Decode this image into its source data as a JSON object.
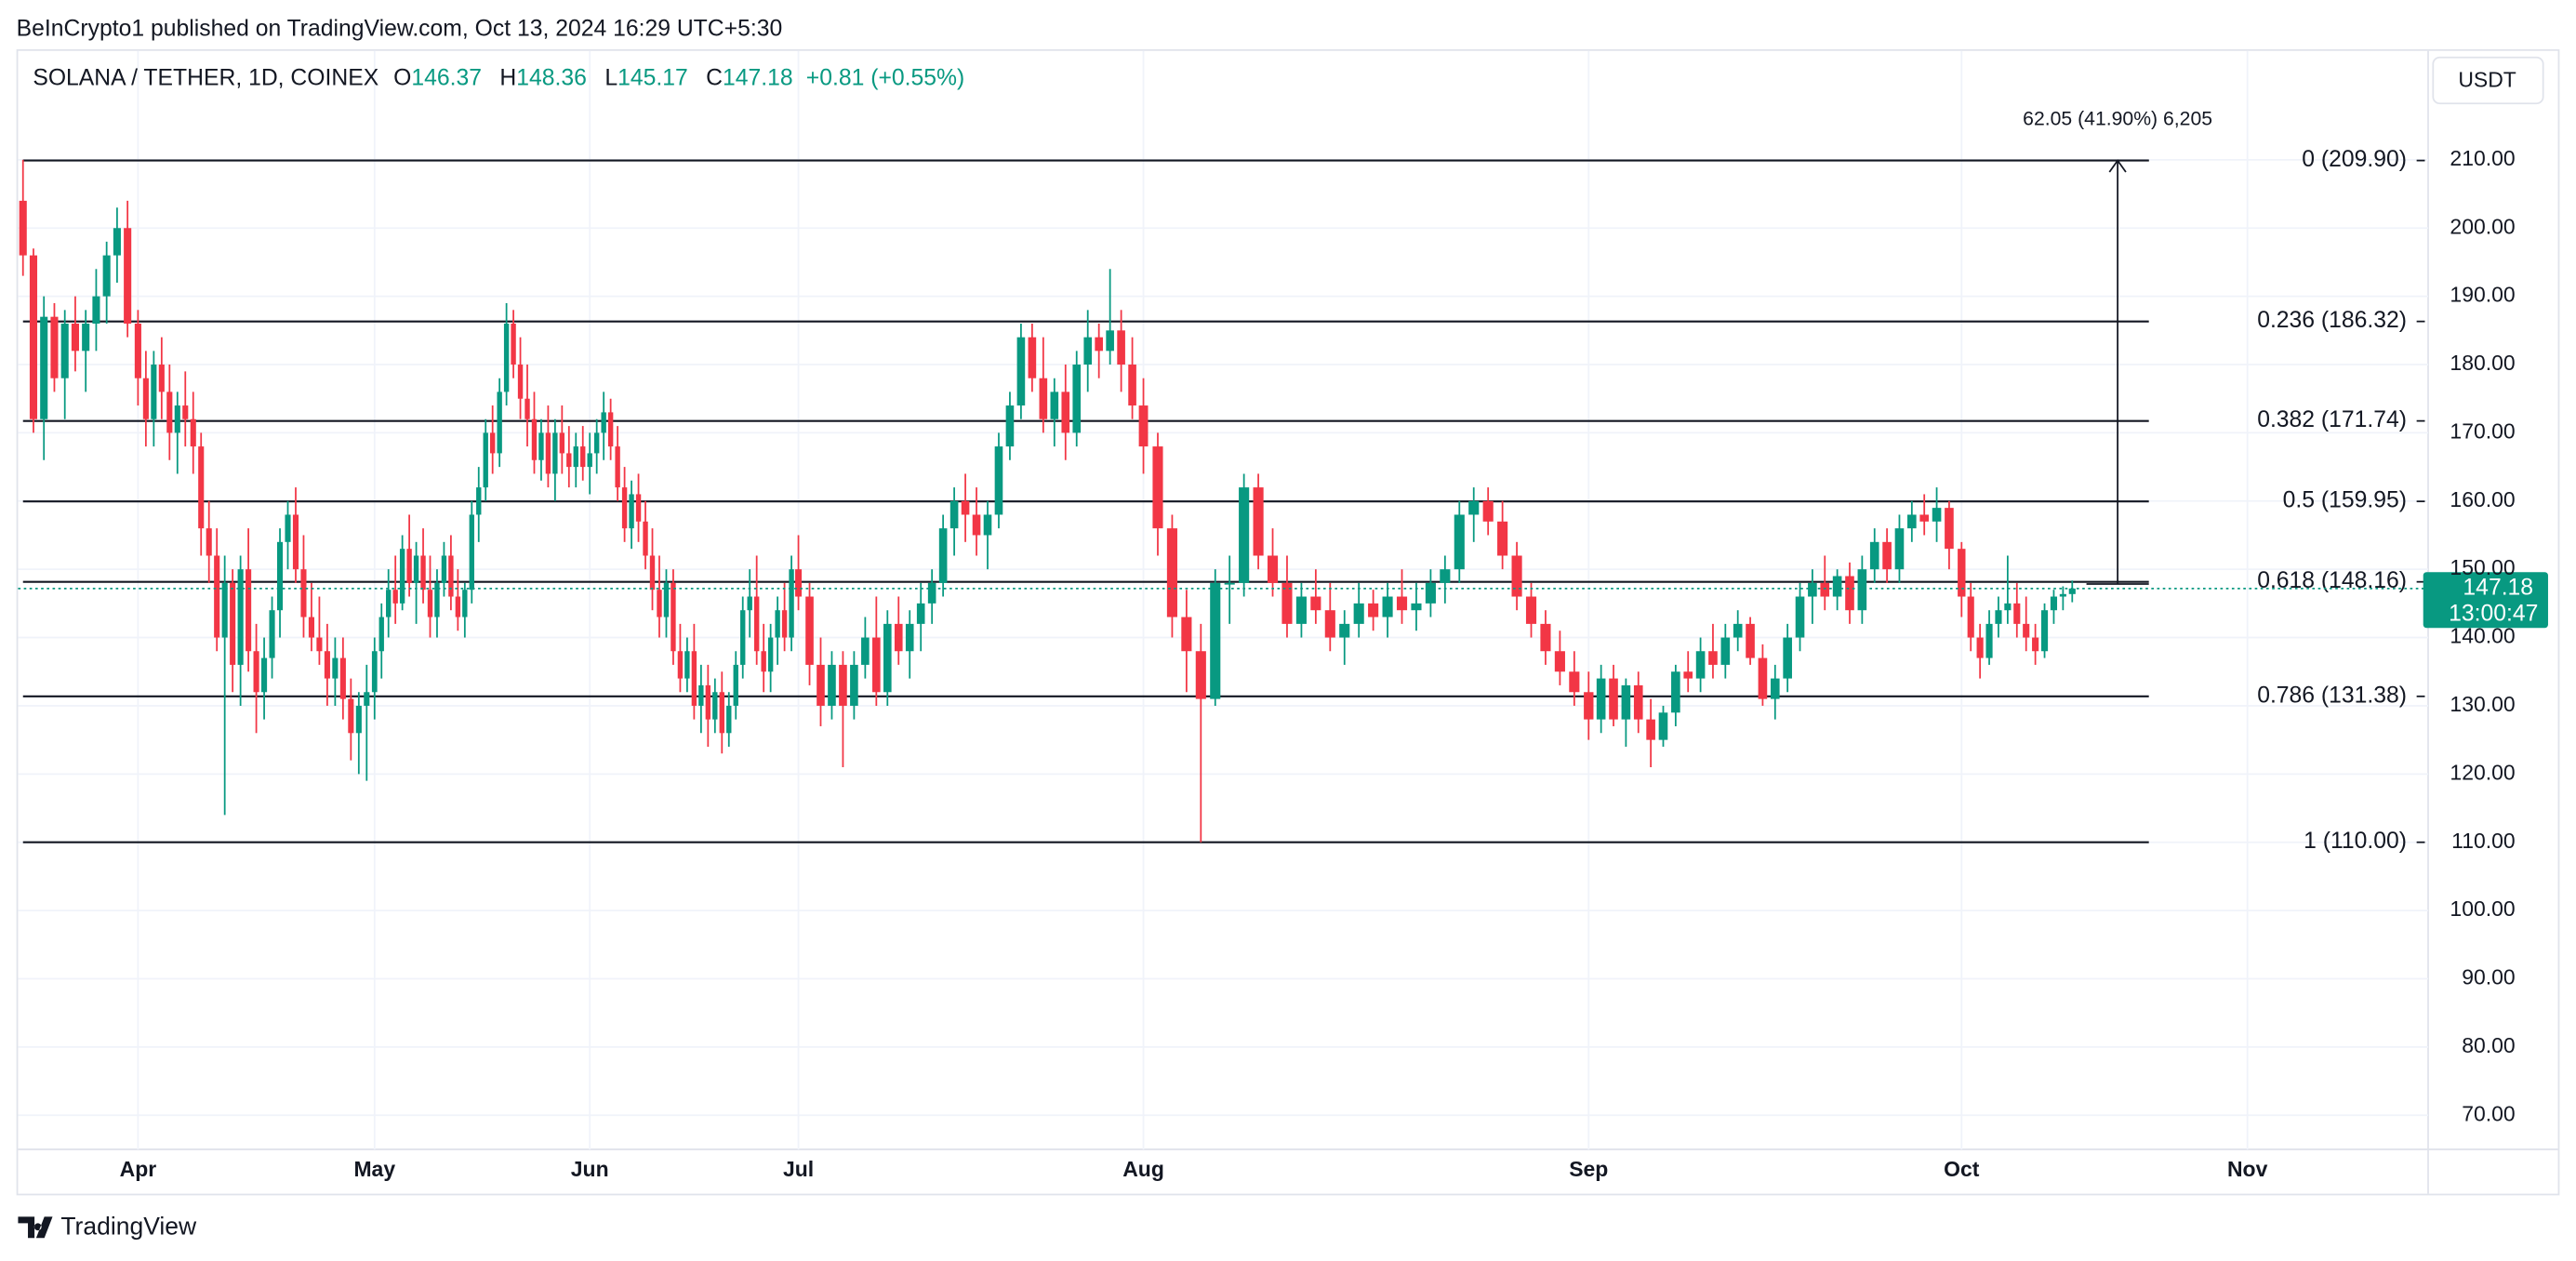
{
  "header": {
    "publisher": "BeInCrypto1 published on TradingView.com, Oct 13, 2024 16:29 UTC+5:30"
  },
  "footer": {
    "brand": "TradingView"
  },
  "chart_data": {
    "type": "candlestick",
    "title": "SOLANA / TETHER, 1D, COINEX",
    "legend": {
      "open_label": "O",
      "open": 146.37,
      "high_label": "H",
      "high": 148.36,
      "low_label": "L",
      "low": 145.17,
      "close_label": "C",
      "close": 147.18,
      "change": "+0.81 (+0.55%)"
    },
    "currency": "USDT",
    "countdown": "13:00:47",
    "colors": {
      "up": "#089981",
      "down": "#f23645"
    },
    "ylim": [
      65,
      225
    ],
    "yticks": [
      {
        "value": 70,
        "label": "70.00"
      },
      {
        "value": 80,
        "label": "80.00"
      },
      {
        "value": 90,
        "label": "90.00"
      },
      {
        "value": 100,
        "label": "100.00"
      },
      {
        "value": 110,
        "label": "110.00"
      },
      {
        "value": 120,
        "label": "120.00"
      },
      {
        "value": 130,
        "label": "130.00"
      },
      {
        "value": 140,
        "label": "140.00"
      },
      {
        "value": 150,
        "label": "150.00"
      },
      {
        "value": 160,
        "label": "160.00"
      },
      {
        "value": 170,
        "label": "170.00"
      },
      {
        "value": 180,
        "label": "180.00"
      },
      {
        "value": 190,
        "label": "190.00"
      },
      {
        "value": 200,
        "label": "200.00"
      },
      {
        "value": 210,
        "label": "210.00"
      }
    ],
    "grid": true,
    "fib_levels": [
      {
        "label": "0 (209.90)",
        "ratio": 0,
        "price": 209.9
      },
      {
        "label": "0.236 (186.32)",
        "ratio": 0.236,
        "price": 186.32
      },
      {
        "label": "0.382 (171.74)",
        "ratio": 0.382,
        "price": 171.74
      },
      {
        "label": "0.5 (159.95)",
        "ratio": 0.5,
        "price": 159.95
      },
      {
        "label": "0.618 (148.16)",
        "ratio": 0.618,
        "price": 148.16
      },
      {
        "label": "0.786 (131.38)",
        "ratio": 0.786,
        "price": 131.38
      },
      {
        "label": "1 (110.00)",
        "ratio": 1,
        "price": 110
      }
    ],
    "measure": {
      "label": "62.05 (41.90%) 6,205",
      "start": 147.85,
      "end": 209.9
    },
    "categories": [
      null,
      null,
      null,
      null,
      null,
      null,
      null,
      null,
      null,
      null,
      null,
      "Apr",
      null,
      null,
      null,
      null,
      null,
      null,
      null,
      null,
      null,
      null,
      null,
      null,
      null,
      null,
      null,
      null,
      null,
      null,
      null,
      null,
      null,
      null,
      null,
      null,
      null,
      null,
      null,
      null,
      null,
      "May",
      null,
      null,
      null,
      null,
      null,
      null,
      null,
      null,
      null,
      null,
      null,
      null,
      null,
      null,
      null,
      null,
      null,
      null,
      null,
      null,
      null,
      null,
      null,
      null,
      null,
      null,
      null,
      null,
      null,
      null,
      "Jun",
      null,
      null,
      null,
      null,
      null,
      null,
      null,
      null,
      null,
      null,
      null,
      null,
      null,
      null,
      null,
      null,
      null,
      null,
      null,
      null,
      null,
      null,
      null,
      null,
      null,
      null,
      null,
      null,
      null,
      "Jul",
      null,
      null,
      null,
      null,
      null,
      null,
      null,
      null,
      null,
      null,
      null,
      null,
      null,
      null,
      null,
      null,
      null,
      null,
      null,
      null,
      null,
      null,
      null,
      null,
      null,
      null,
      null,
      null,
      null,
      null,
      "Aug",
      null,
      null,
      null,
      null,
      null,
      null,
      null,
      null,
      null,
      null,
      null,
      null,
      null,
      null,
      null,
      null,
      null,
      null,
      null,
      null,
      null,
      null,
      null,
      null,
      null,
      null,
      null,
      null,
      null,
      null,
      "Sep",
      null,
      null,
      null,
      null,
      null,
      null,
      null,
      null,
      null,
      null,
      null,
      null,
      null,
      null,
      null,
      null,
      null,
      null,
      null,
      null,
      null,
      null,
      null,
      null,
      null,
      null,
      null,
      null,
      null,
      "Oct",
      null,
      null,
      null,
      null,
      null,
      null,
      null,
      null,
      null,
      null,
      null,
      null,
      null,
      null,
      null,
      null,
      null,
      null,
      null,
      null,
      null,
      null,
      null,
      null,
      null,
      null,
      null,
      null,
      null,
      null,
      "Nov"
    ],
    "ohlc": [
      [
        204,
        210,
        193,
        196
      ],
      [
        196,
        197,
        170,
        172
      ],
      [
        172,
        190,
        166,
        187
      ],
      [
        187,
        189,
        176,
        178
      ],
      [
        178,
        188,
        172,
        186
      ],
      [
        186,
        190,
        179,
        182
      ],
      [
        182,
        188,
        176,
        186
      ],
      [
        186,
        194,
        182,
        190
      ],
      [
        190,
        198,
        186,
        196
      ],
      [
        196,
        203,
        192,
        200
      ],
      [
        200,
        204,
        184,
        186
      ],
      [
        186,
        188,
        174,
        178
      ],
      [
        178,
        182,
        168,
        172
      ],
      [
        172,
        182,
        168,
        180
      ],
      [
        180,
        184,
        172,
        176
      ],
      [
        176,
        180,
        166,
        170
      ],
      [
        170,
        176,
        164,
        174
      ],
      [
        174,
        179,
        168,
        172
      ],
      [
        172,
        176,
        164,
        168
      ],
      [
        168,
        170,
        152,
        156
      ],
      [
        156,
        160,
        148,
        152
      ],
      [
        152,
        156,
        138,
        140
      ],
      [
        140,
        152,
        114,
        148
      ],
      [
        148,
        150,
        132,
        136
      ],
      [
        136,
        152,
        130,
        150
      ],
      [
        150,
        156,
        135,
        138
      ],
      [
        138,
        142,
        126,
        132
      ],
      [
        132,
        140,
        128,
        137
      ],
      [
        137,
        146,
        134,
        144
      ],
      [
        144,
        156,
        140,
        154
      ],
      [
        154,
        160,
        150,
        158
      ],
      [
        158,
        162,
        148,
        150
      ],
      [
        150,
        155,
        140,
        143
      ],
      [
        143,
        148,
        138,
        140
      ],
      [
        140,
        146,
        136,
        138
      ],
      [
        138,
        142,
        130,
        134
      ],
      [
        134,
        140,
        130,
        137
      ],
      [
        137,
        140,
        128,
        131
      ],
      [
        131,
        134,
        122,
        126
      ],
      [
        126,
        132,
        120,
        130
      ],
      [
        130,
        136,
        119,
        132
      ],
      [
        132,
        140,
        128,
        138
      ],
      [
        138,
        145,
        134,
        143
      ],
      [
        143,
        150,
        140,
        147
      ],
      [
        147,
        152,
        142,
        145
      ],
      [
        145,
        155,
        144,
        153
      ],
      [
        153,
        158,
        146,
        148
      ],
      [
        148,
        154,
        142,
        152
      ],
      [
        152,
        156,
        145,
        147
      ],
      [
        147,
        152,
        140,
        143
      ],
      [
        143,
        150,
        140,
        148
      ],
      [
        148,
        154,
        146,
        152
      ],
      [
        152,
        155,
        144,
        146
      ],
      [
        146,
        150,
        141,
        143
      ],
      [
        143,
        148,
        140,
        147
      ],
      [
        147,
        160,
        145,
        158
      ],
      [
        158,
        165,
        154,
        162
      ],
      [
        162,
        172,
        160,
        170
      ],
      [
        170,
        174,
        164,
        167
      ],
      [
        167,
        178,
        165,
        176
      ],
      [
        176,
        189,
        174,
        186
      ],
      [
        186,
        188,
        178,
        180
      ],
      [
        180,
        184,
        172,
        175
      ],
      [
        175,
        180,
        168,
        172
      ],
      [
        172,
        176,
        164,
        166
      ],
      [
        166,
        172,
        163,
        170
      ],
      [
        170,
        174,
        162,
        164
      ],
      [
        164,
        172,
        160,
        170
      ],
      [
        170,
        174,
        164,
        167
      ],
      [
        167,
        171,
        162,
        165
      ],
      [
        165,
        170,
        162,
        168
      ],
      [
        168,
        171,
        163,
        165
      ],
      [
        165,
        170,
        161,
        167
      ],
      [
        167,
        172,
        164,
        170
      ],
      [
        170,
        176,
        166,
        173
      ],
      [
        173,
        175,
        166,
        168
      ],
      [
        168,
        171,
        160,
        162
      ],
      [
        162,
        165,
        154,
        156
      ],
      [
        156,
        163,
        153,
        161
      ],
      [
        161,
        164,
        154,
        157
      ],
      [
        157,
        160,
        150,
        152
      ],
      [
        152,
        156,
        144,
        147
      ],
      [
        147,
        152,
        140,
        143
      ],
      [
        143,
        150,
        140,
        148
      ],
      [
        148,
        150,
        136,
        138
      ],
      [
        138,
        142,
        132,
        134
      ],
      [
        134,
        140,
        132,
        138
      ],
      [
        138,
        142,
        128,
        130
      ],
      [
        130,
        136,
        126,
        133
      ],
      [
        133,
        136,
        124,
        128
      ],
      [
        128,
        134,
        126,
        132
      ],
      [
        132,
        135,
        123,
        126
      ],
      [
        126,
        132,
        124,
        130
      ],
      [
        130,
        138,
        128,
        136
      ],
      [
        136,
        146,
        134,
        144
      ],
      [
        144,
        150,
        140,
        146
      ],
      [
        146,
        152,
        136,
        138
      ],
      [
        138,
        142,
        132,
        135
      ],
      [
        135,
        142,
        132,
        140
      ],
      [
        140,
        146,
        136,
        144
      ],
      [
        144,
        148,
        138,
        140
      ],
      [
        140,
        152,
        138,
        150
      ],
      [
        150,
        155,
        144,
        146
      ],
      [
        146,
        148,
        133,
        136
      ],
      [
        136,
        140,
        127,
        130
      ],
      [
        130,
        138,
        128,
        136
      ],
      [
        136,
        138,
        121,
        130
      ],
      [
        130,
        138,
        128,
        136
      ],
      [
        136,
        143,
        134,
        140
      ],
      [
        140,
        146,
        130,
        132
      ],
      [
        132,
        144,
        130,
        142
      ],
      [
        142,
        146,
        136,
        138
      ],
      [
        138,
        144,
        134,
        142
      ],
      [
        142,
        148,
        138,
        145
      ],
      [
        145,
        150,
        142,
        148
      ],
      [
        148,
        158,
        146,
        156
      ],
      [
        156,
        162,
        152,
        160
      ],
      [
        160,
        164,
        154,
        158
      ],
      [
        158,
        162,
        152,
        155
      ],
      [
        155,
        160,
        150,
        158
      ],
      [
        158,
        170,
        156,
        168
      ],
      [
        168,
        176,
        166,
        174
      ],
      [
        174,
        186,
        172,
        184
      ],
      [
        184,
        186,
        176,
        178
      ],
      [
        178,
        184,
        170,
        172
      ],
      [
        172,
        178,
        168,
        176
      ],
      [
        176,
        180,
        166,
        170
      ],
      [
        170,
        182,
        168,
        180
      ],
      [
        180,
        188,
        176,
        184
      ],
      [
        184,
        186,
        178,
        182
      ],
      [
        182,
        194,
        180,
        185
      ],
      [
        185,
        188,
        176,
        180
      ],
      [
        180,
        184,
        172,
        174
      ],
      [
        174,
        178,
        164,
        168
      ],
      [
        168,
        170,
        152,
        156
      ],
      [
        156,
        158,
        140,
        143
      ],
      [
        143,
        147,
        132,
        138
      ],
      [
        138,
        142,
        110,
        131
      ],
      [
        131,
        150,
        130,
        148
      ],
      [
        148,
        152,
        142,
        148
      ],
      [
        148,
        164,
        146,
        162
      ],
      [
        162,
        164,
        150,
        152
      ],
      [
        152,
        156,
        146,
        148
      ],
      [
        148,
        152,
        140,
        142
      ],
      [
        142,
        148,
        140,
        146
      ],
      [
        146,
        150,
        142,
        144
      ],
      [
        144,
        148,
        138,
        140
      ],
      [
        140,
        144,
        136,
        142
      ],
      [
        142,
        148,
        140,
        145
      ],
      [
        145,
        147,
        141,
        143
      ],
      [
        143,
        148,
        140,
        146
      ],
      [
        146,
        150,
        142,
        144
      ],
      [
        144,
        148,
        141,
        145
      ],
      [
        145,
        150,
        143,
        148
      ],
      [
        148,
        152,
        145,
        150
      ],
      [
        150,
        160,
        148,
        158
      ],
      [
        158,
        162,
        154,
        160
      ],
      [
        160,
        162,
        155,
        157
      ],
      [
        157,
        160,
        150,
        152
      ],
      [
        152,
        154,
        144,
        146
      ],
      [
        146,
        148,
        140,
        142
      ],
      [
        142,
        144,
        136,
        138
      ],
      [
        138,
        141,
        133,
        135
      ],
      [
        135,
        138,
        130,
        132
      ],
      [
        132,
        135,
        125,
        128
      ],
      [
        128,
        136,
        126,
        134
      ],
      [
        134,
        136,
        127,
        128
      ],
      [
        128,
        134,
        124,
        133
      ],
      [
        133,
        135,
        126,
        128
      ],
      [
        128,
        131,
        121,
        125
      ],
      [
        125,
        130,
        124,
        129
      ],
      [
        129,
        136,
        127,
        135
      ],
      [
        135,
        138,
        132,
        134
      ],
      [
        134,
        140,
        132,
        138
      ],
      [
        138,
        142,
        134,
        136
      ],
      [
        136,
        142,
        134,
        140
      ],
      [
        140,
        144,
        138,
        142
      ],
      [
        142,
        143,
        136,
        137
      ],
      [
        137,
        139,
        130,
        131
      ],
      [
        131,
        136,
        128,
        134
      ],
      [
        134,
        142,
        132,
        140
      ],
      [
        140,
        148,
        138,
        146
      ],
      [
        146,
        150,
        142,
        148
      ],
      [
        148,
        152,
        144,
        146
      ],
      [
        146,
        150,
        144,
        149
      ],
      [
        149,
        151,
        142,
        144
      ],
      [
        144,
        152,
        142,
        150
      ],
      [
        150,
        156,
        148,
        154
      ],
      [
        154,
        156,
        148,
        150
      ],
      [
        150,
        158,
        148,
        156
      ],
      [
        156,
        160,
        154,
        158
      ],
      [
        158,
        161,
        155,
        157
      ],
      [
        157,
        162,
        154,
        159
      ],
      [
        159,
        160,
        150,
        153
      ],
      [
        153,
        154,
        143,
        146
      ],
      [
        146,
        148,
        138,
        140
      ],
      [
        140,
        142,
        134,
        137
      ],
      [
        137,
        144,
        136,
        142
      ],
      [
        142,
        146,
        140,
        144
      ],
      [
        144,
        152,
        142,
        145
      ],
      [
        145,
        148,
        140,
        142
      ],
      [
        142,
        146,
        138,
        140
      ],
      [
        140,
        142,
        136,
        138
      ],
      [
        138,
        145,
        137,
        144
      ],
      [
        144,
        147,
        142,
        146
      ],
      [
        146,
        147.5,
        144,
        146.37
      ],
      [
        146.37,
        148.36,
        145.17,
        147.18
      ],
      null,
      null,
      null,
      null,
      null,
      null,
      null,
      null,
      null,
      null,
      null,
      null,
      null,
      null,
      null,
      null,
      null,
      null,
      null
    ]
  }
}
